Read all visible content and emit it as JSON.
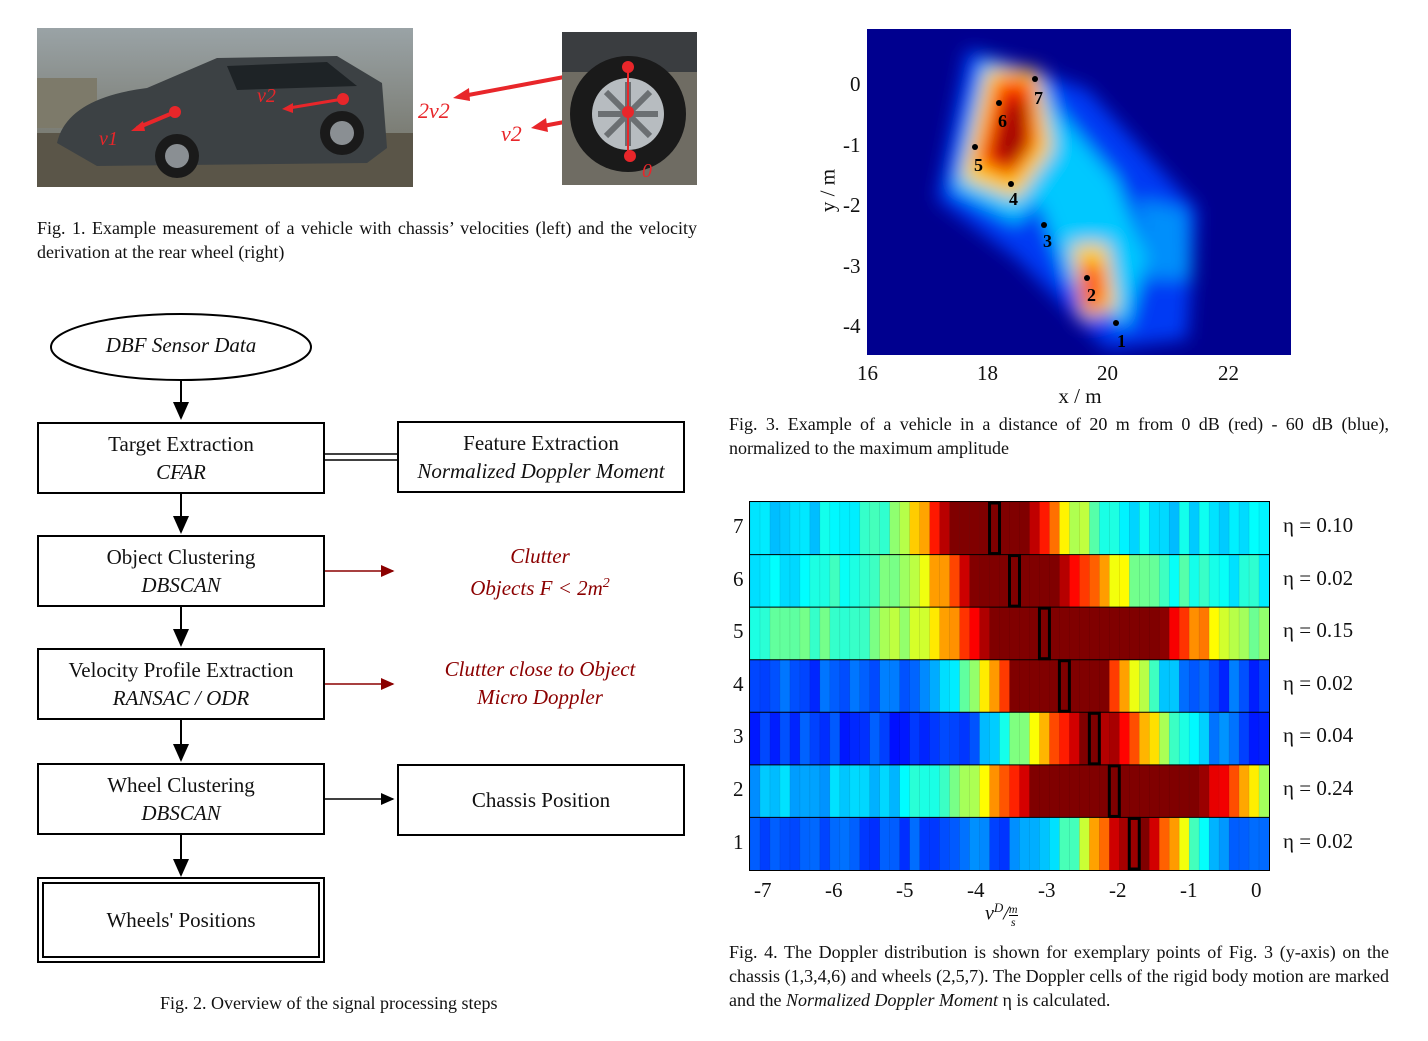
{
  "fig1": {
    "labels": {
      "v1": "v1",
      "v2": "v2",
      "two_v2": "2v2",
      "v2_wheel": "v2",
      "zero": "0"
    },
    "caption": "Fig. 1.  Example measurement of a vehicle with chassis’ velocities (left) and the velocity derivation at the rear wheel (right)"
  },
  "fig2": {
    "start": "DBF Sensor Data",
    "steps": [
      {
        "title": "Target Extraction",
        "method": "CFAR"
      },
      {
        "title": "Object Clustering",
        "method": "DBSCAN"
      },
      {
        "title": "Velocity Profile Extraction",
        "method": "RANSAC / ODR"
      },
      {
        "title": "Wheel Clustering",
        "method": "DBSCAN"
      }
    ],
    "feature": {
      "title": "Feature Extraction",
      "method": "Normalized Doppler Moment"
    },
    "clutter1": {
      "line1": "Clutter",
      "line2": "Objects F < 2m",
      "sup": "2"
    },
    "clutter2": {
      "line1": "Clutter close to Object",
      "line2": "Micro Doppler"
    },
    "chassis": "Chassis Position",
    "end": "Wheels' Positions",
    "caption": "Fig. 2.  Overview of the signal processing steps"
  },
  "fig3": {
    "xlabel": "x / m",
    "ylabel": "y / m",
    "xticks": [
      "16",
      "18",
      "20",
      "22"
    ],
    "yticks": [
      "0",
      "-1",
      "-2",
      "-3",
      "-4"
    ],
    "points": [
      "1",
      "2",
      "3",
      "4",
      "5",
      "6",
      "7"
    ],
    "caption": "Fig. 3.  Example of a vehicle in a distance of 20 m from 0 dB (red) - 60 dB (blue), normalized to the maximum amplitude"
  },
  "fig4": {
    "rows": [
      "7",
      "6",
      "5",
      "4",
      "3",
      "2",
      "1"
    ],
    "etas": [
      "η = 0.10",
      "η = 0.02",
      "η = 0.15",
      "η = 0.02",
      "η = 0.04",
      "η = 0.24",
      "η = 0.02"
    ],
    "xticks": [
      "-7",
      "-6",
      "-5",
      "-4",
      "-3",
      "-2",
      "-1",
      "0"
    ],
    "xlabel": "vD / (m/s)",
    "caption_parts": {
      "a": "Fig. 4.  The Doppler distribution is shown for exemplary points of Fig. 3 (y-axis) on the chassis (1,3,4,6) and wheels (2,5,7). The Doppler cells of the rigid body motion are marked and the ",
      "b": "Normalized Doppler Moment",
      "c": " η is calculated."
    }
  },
  "colors": {
    "accent_red": "#e8262a",
    "dark_red": "#8b0000",
    "jet_blue": "#00008f"
  }
}
